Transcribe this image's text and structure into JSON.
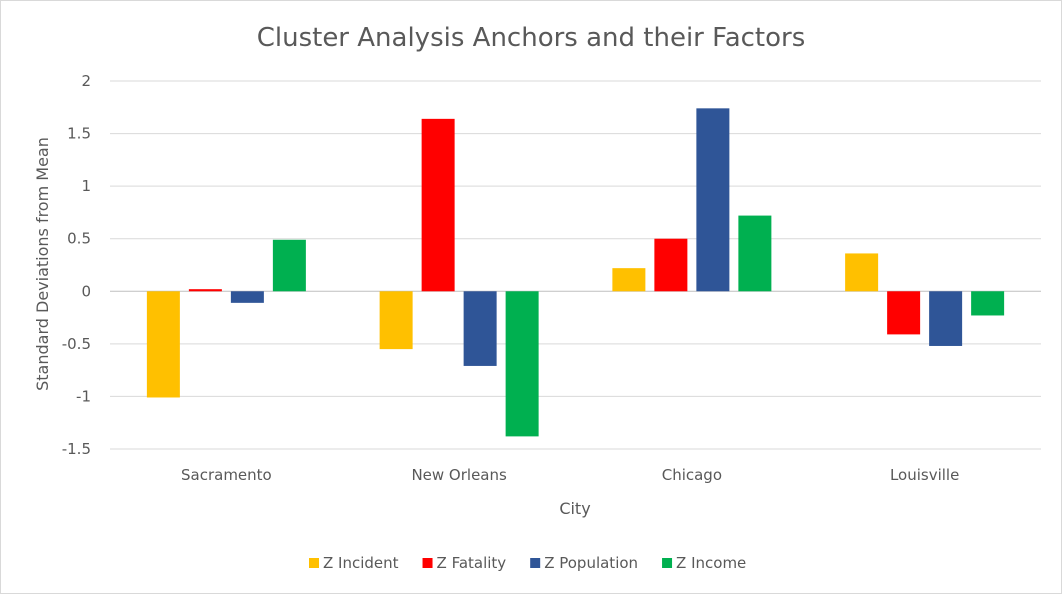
{
  "chart_data": {
    "type": "bar",
    "title": "Cluster Analysis Anchors and their Factors",
    "xlabel": "City",
    "ylabel": "Standard Deviations from Mean",
    "categories": [
      "Sacramento",
      "New Orleans",
      "Chicago",
      "Louisville"
    ],
    "series": [
      {
        "name": "Z Incident",
        "color": "#FFC000",
        "values": [
          -1.01,
          -0.55,
          0.22,
          0.36
        ]
      },
      {
        "name": "Z Fatality",
        "color": "#FF0000",
        "values": [
          0.02,
          1.64,
          0.5,
          -0.41
        ]
      },
      {
        "name": "Z Population",
        "color": "#2F5597",
        "values": [
          -0.11,
          -0.71,
          1.74,
          -0.52
        ]
      },
      {
        "name": "Z Income",
        "color": "#00B050",
        "values": [
          0.49,
          -1.38,
          0.72,
          -0.23
        ]
      }
    ],
    "ylim": [
      -1.5,
      2
    ],
    "yticks": [
      2,
      1.5,
      1,
      0.5,
      0,
      -0.5,
      -1,
      -1.5
    ],
    "ytick_labels": [
      "2",
      "1.5",
      "1",
      "0.5",
      "0",
      "-0.5",
      "-1",
      "-1.5"
    ],
    "grid": true,
    "legend_position": "bottom"
  }
}
